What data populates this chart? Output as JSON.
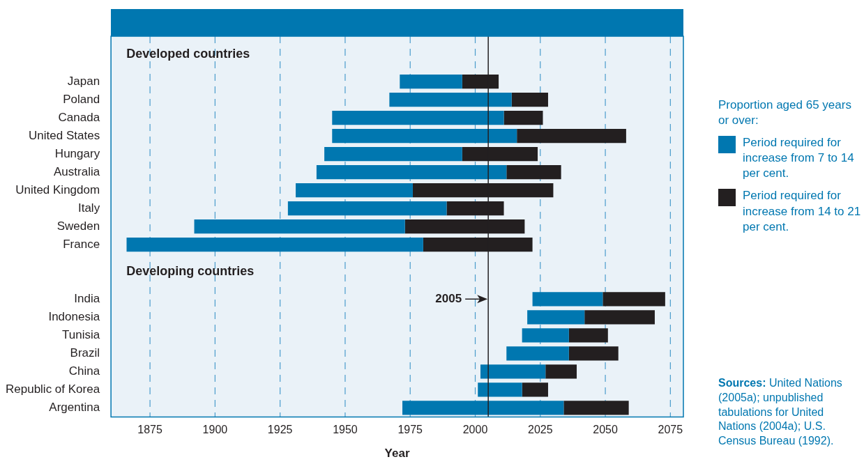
{
  "chart_data": {
    "type": "bar",
    "orientation": "horizontal",
    "categories": [
      null,
      null,
      "Japan",
      "Poland",
      "Canada",
      "United States",
      "Hungary",
      "Australia",
      "United Kingdom",
      "Italy",
      "Sweden",
      "France",
      null,
      null,
      "India",
      "Indonesia",
      "Tunisia",
      "Brazil",
      "China",
      "Republic of Korea",
      "Argentina"
    ],
    "series": [
      {
        "name": "Period required for increase from 7 to 14 per cent.",
        "color": "#0077b0",
        "base": [
          null,
          null,
          1971,
          1967,
          1945,
          1945,
          1942,
          1939,
          1931,
          1928,
          1892,
          1866,
          null,
          null,
          2022,
          2020,
          2018,
          2012,
          2002,
          2001,
          1972
        ],
        "values": [
          null,
          null,
          24,
          47,
          66,
          71,
          53,
          73,
          45,
          61,
          81,
          114,
          null,
          null,
          27,
          22,
          18,
          24,
          25,
          17,
          62
        ]
      },
      {
        "name": "Period required for increase from 14 to 21 per cent.",
        "color": "#231f20",
        "base": [
          null,
          null,
          1995,
          2014,
          2011,
          2016,
          1995,
          2012,
          1976,
          1989,
          1973,
          1980,
          null,
          null,
          2049,
          2042,
          2036,
          2036,
          2027,
          2018,
          2034
        ],
        "values": [
          null,
          null,
          14,
          14,
          15,
          42,
          29,
          21,
          54,
          22,
          46,
          42,
          null,
          null,
          24,
          27,
          15,
          19,
          12,
          10,
          25
        ]
      }
    ],
    "xlabel": "Year",
    "xlim": [
      1860,
      2080
    ],
    "xticks": [
      1875,
      1900,
      1925,
      1950,
      1975,
      2000,
      2025,
      2050,
      2075
    ],
    "grid": "x",
    "legend": "right",
    "legend_title": "Proportion aged 65 years or over:",
    "ref_lines": [
      {
        "axis": "x",
        "value": 2005,
        "label": "2005",
        "color": "#231f20"
      }
    ],
    "annotations": [
      "Developed countries",
      "Developing countries",
      "Sources: United Nations (2005a); unpublished tabulations for United Nations (2004a); U.S. Census Bureau (1992)."
    ]
  }
}
